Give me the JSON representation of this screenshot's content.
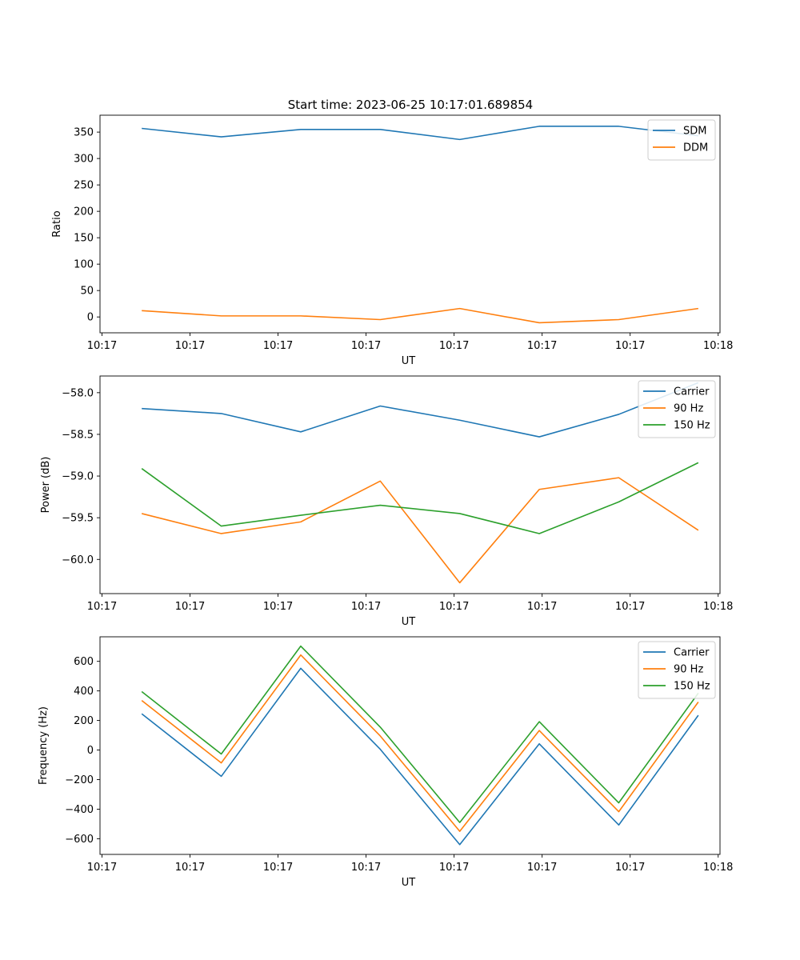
{
  "figure": {
    "title": "Start time: 2023-06-25 10:17:01.689854"
  },
  "chart_data": [
    {
      "type": "line",
      "xlabel": "UT",
      "ylabel": "Ratio",
      "x_tick_labels": [
        "10:17",
        "10:17",
        "10:17",
        "10:17",
        "10:17",
        "10:17",
        "10:17",
        "10:18"
      ],
      "y_ticks": [
        0,
        50,
        100,
        150,
        200,
        250,
        300,
        350
      ],
      "ylim": [
        -30,
        382
      ],
      "xlim": [
        -0.075,
        1.039
      ],
      "x": [
        0,
        0.1429,
        0.2857,
        0.4286,
        0.5714,
        0.7143,
        0.8571,
        1.0
      ],
      "legend": "top-right",
      "series": [
        {
          "name": "SDM",
          "color": "#1f77b4",
          "values": [
            357,
            341,
            355,
            355,
            336,
            361,
            361,
            343
          ]
        },
        {
          "name": "DDM",
          "color": "#ff7f0e",
          "values": [
            12,
            2,
            2,
            -5,
            16,
            -11,
            -5,
            16
          ]
        }
      ]
    },
    {
      "type": "line",
      "xlabel": "UT",
      "ylabel": "Power (dB)",
      "x_tick_labels": [
        "10:17",
        "10:17",
        "10:17",
        "10:17",
        "10:17",
        "10:17",
        "10:17",
        "10:18"
      ],
      "y_ticks": [
        -60.0,
        -59.5,
        -59.0,
        -58.5,
        -58.0
      ],
      "y_tick_labels": [
        "−60.0",
        "−59.5",
        "−59.0",
        "−58.5",
        "−58.0"
      ],
      "ylim": [
        -60.41,
        -57.8
      ],
      "xlim": [
        -0.075,
        1.039
      ],
      "x": [
        0,
        0.1429,
        0.2857,
        0.4286,
        0.5714,
        0.7143,
        0.8571,
        1.0
      ],
      "legend": "top-right",
      "series": [
        {
          "name": "Carrier",
          "color": "#1f77b4",
          "values": [
            -58.19,
            -58.25,
            -58.47,
            -58.16,
            -58.33,
            -58.53,
            -58.26,
            -57.88
          ]
        },
        {
          "name": "90 Hz",
          "color": "#ff7f0e",
          "values": [
            -59.45,
            -59.69,
            -59.55,
            -59.06,
            -60.28,
            -59.16,
            -59.02,
            -59.65
          ]
        },
        {
          "name": "150 Hz",
          "color": "#2ca02c",
          "values": [
            -58.91,
            -59.6,
            -59.47,
            -59.35,
            -59.45,
            -59.69,
            -59.31,
            -58.84
          ]
        }
      ]
    },
    {
      "type": "line",
      "xlabel": "UT",
      "ylabel": "Frequency (Hz)",
      "x_tick_labels": [
        "10:17",
        "10:17",
        "10:17",
        "10:17",
        "10:17",
        "10:17",
        "10:17",
        "10:18"
      ],
      "y_ticks": [
        -600,
        -400,
        -200,
        0,
        200,
        400,
        600
      ],
      "y_tick_labels": [
        "−600",
        "−400",
        "−200",
        "0",
        "200",
        "400",
        "600"
      ],
      "ylim": [
        -706,
        766
      ],
      "xlim": [
        -0.075,
        1.039
      ],
      "x": [
        0,
        0.1429,
        0.2857,
        0.4286,
        0.5714,
        0.7143,
        0.8571,
        1.0
      ],
      "legend": "top-right",
      "series": [
        {
          "name": "Carrier",
          "color": "#1f77b4",
          "values": [
            245,
            -178,
            553,
            5,
            -640,
            42,
            -507,
            235
          ]
        },
        {
          "name": "90 Hz",
          "color": "#ff7f0e",
          "values": [
            335,
            -87,
            643,
            95,
            -550,
            132,
            -417,
            325
          ]
        },
        {
          "name": "150 Hz",
          "color": "#2ca02c",
          "values": [
            395,
            -27,
            703,
            155,
            -490,
            192,
            -357,
            385
          ]
        }
      ]
    }
  ]
}
